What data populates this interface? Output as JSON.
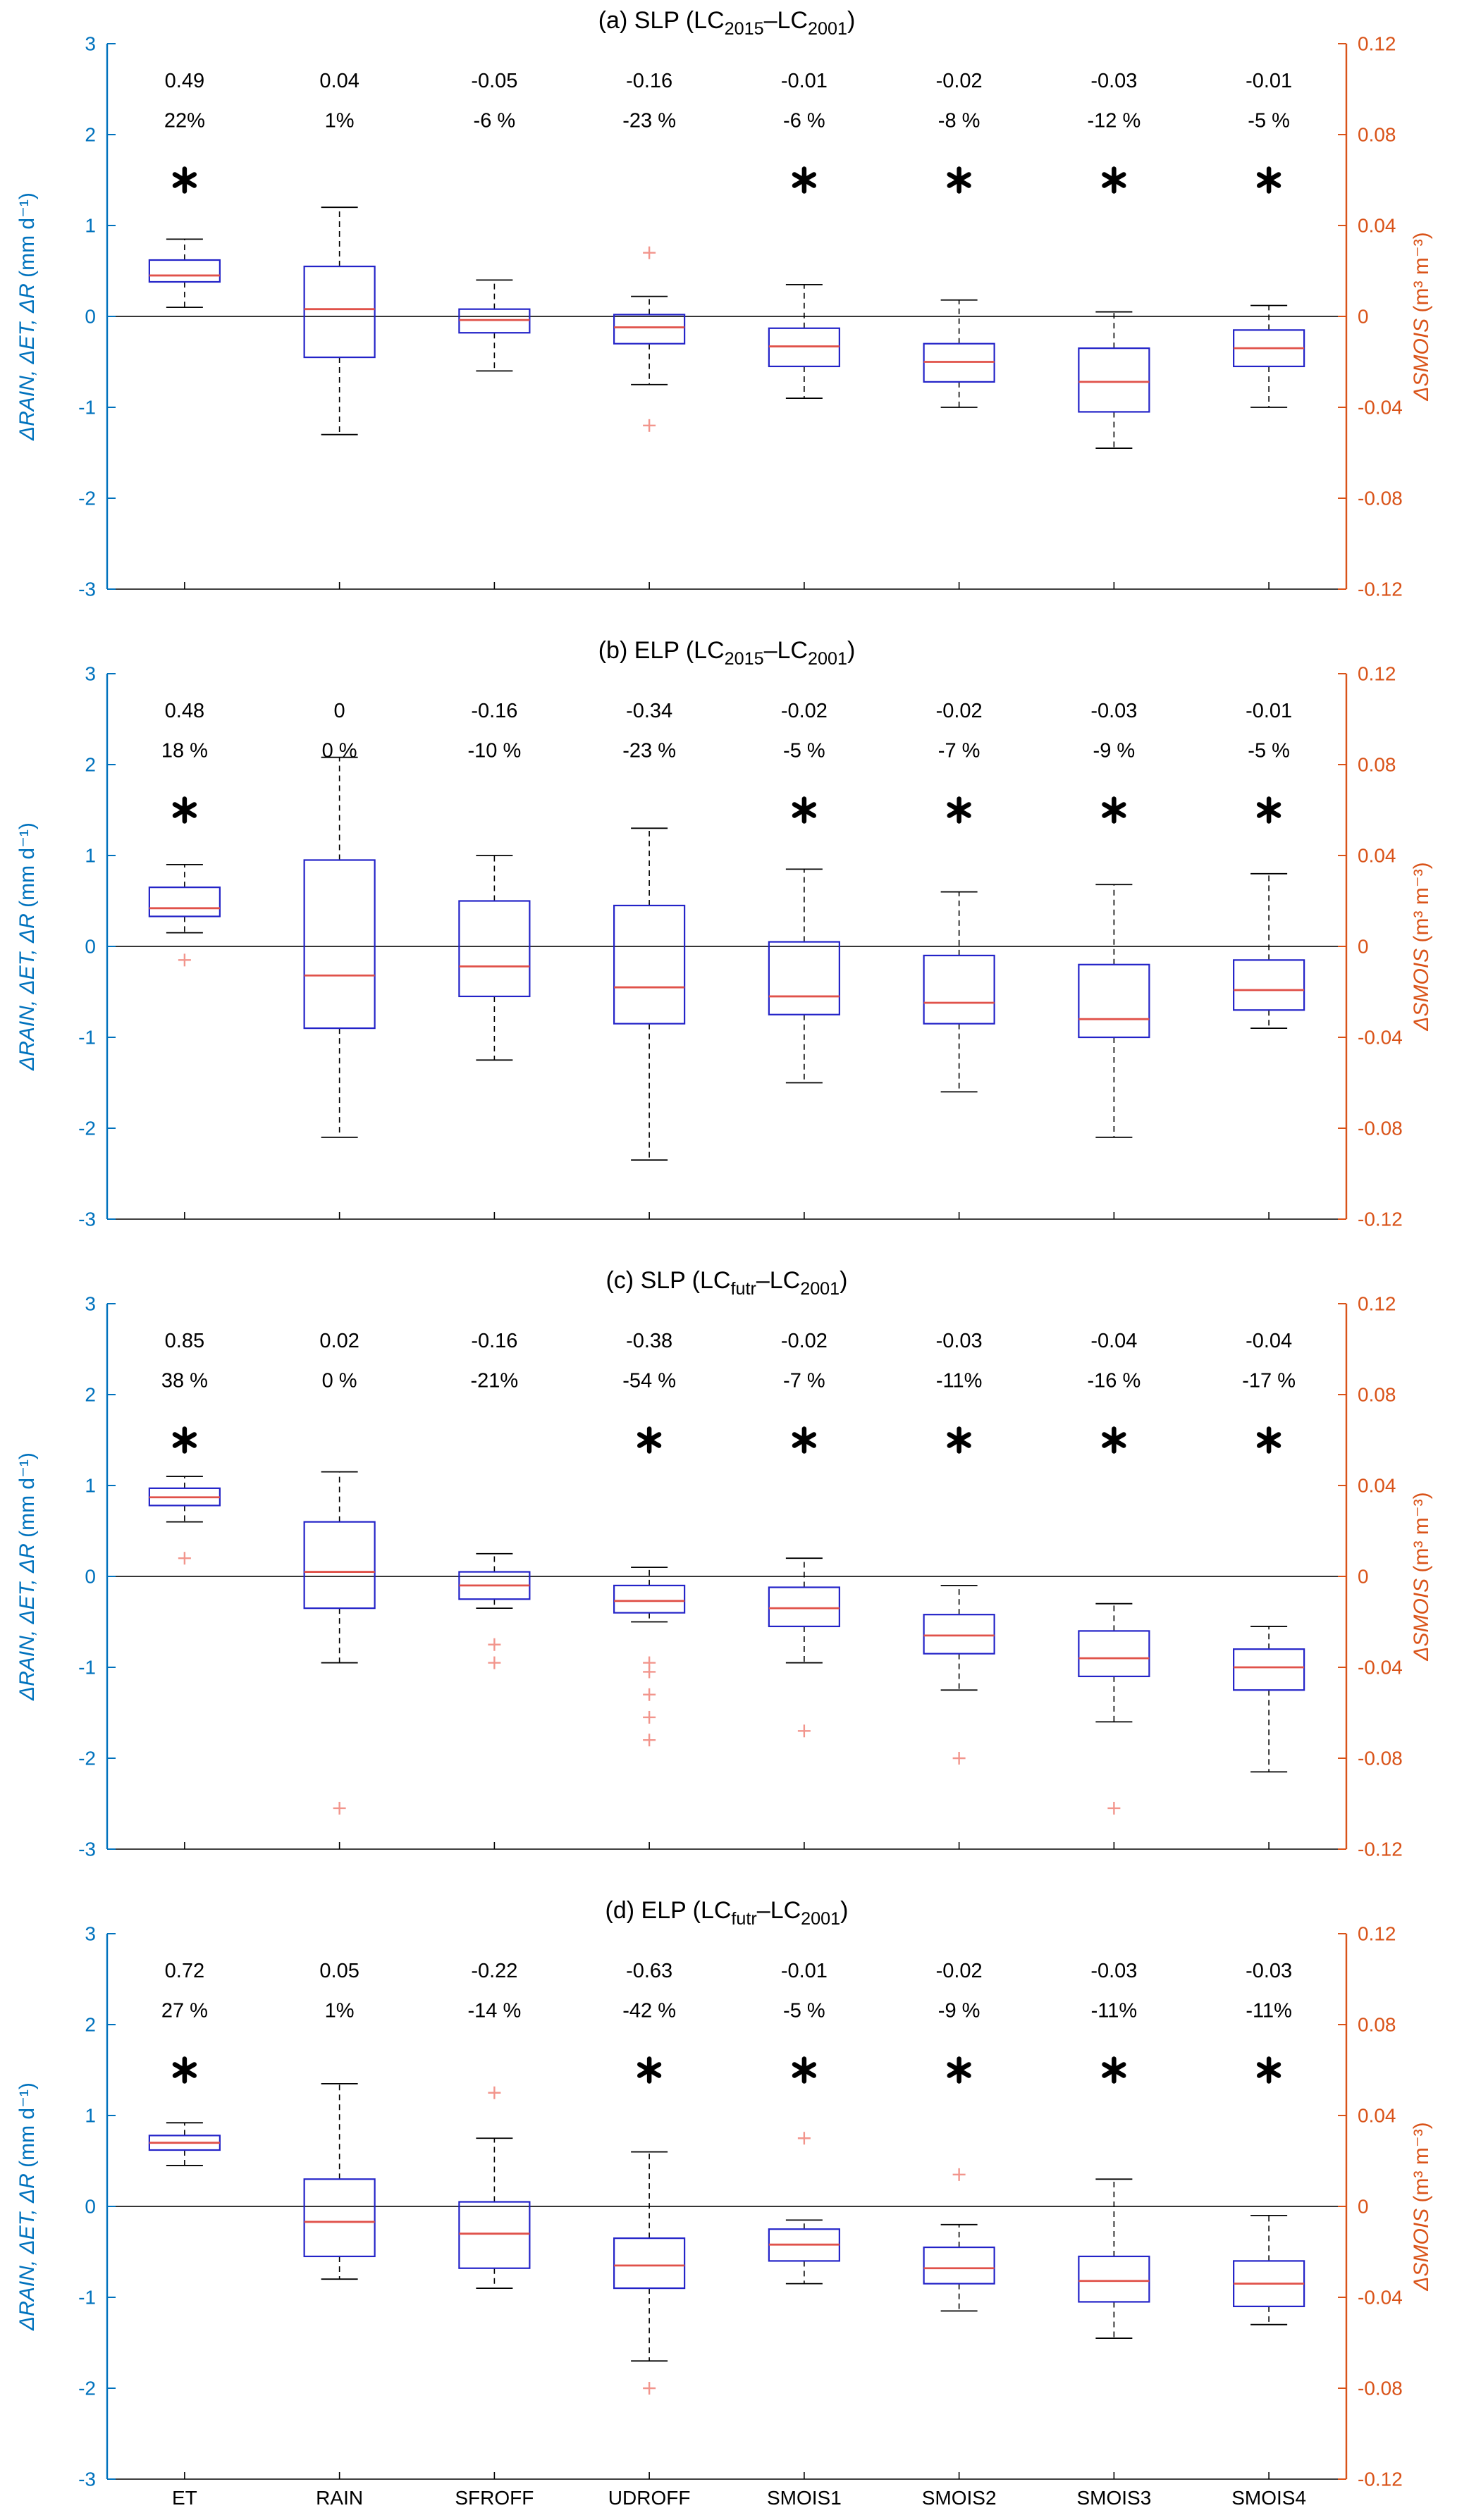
{
  "figure": {
    "units_left": "mm d⁻¹",
    "units_right": "m³ m⁻³",
    "left_axis_label": [
      {
        "text": "ΔRAIN, ΔET, ΔR",
        "italic": true
      },
      {
        "text": " (mm d⁻¹)",
        "italic": false
      }
    ],
    "right_axis_label": [
      {
        "text": "ΔSMOIS",
        "italic": true
      },
      {
        "text": " (m³ m⁻³)",
        "italic": false
      }
    ],
    "left_ticks": [
      {
        "v": 3,
        "label": "3"
      },
      {
        "v": 2,
        "label": "2"
      },
      {
        "v": 1,
        "label": "1"
      },
      {
        "v": 0,
        "label": "0"
      },
      {
        "v": -1,
        "label": "-1"
      },
      {
        "v": -2,
        "label": "-2"
      },
      {
        "v": -3,
        "label": "-3"
      }
    ],
    "right_ticks": [
      {
        "v": 0.12,
        "label": "0.12"
      },
      {
        "v": 0.08,
        "label": "0.08"
      },
      {
        "v": 0.04,
        "label": "0.04"
      },
      {
        "v": 0,
        "label": "0"
      },
      {
        "v": -0.04,
        "label": "-0.04"
      },
      {
        "v": -0.08,
        "label": "-0.08"
      },
      {
        "v": -0.12,
        "label": "-0.12"
      }
    ],
    "colors": {
      "left_axis": "#0072BD",
      "right_axis": "#D95319",
      "box": "#2323C8",
      "median": "#E0524A",
      "outlier": "#F2958C",
      "whisker": "#000000",
      "zero_line": "#1a1a1a",
      "text": "#000000"
    },
    "categories": [
      "ET",
      "RAIN",
      "SFROFF",
      "UDROFF",
      "SMOIS1",
      "SMOIS2",
      "SMOIS3",
      "SMOIS4"
    ],
    "category_axis": [
      "left",
      "left",
      "left",
      "left",
      "right",
      "right",
      "right",
      "right"
    ]
  },
  "chart_data": [
    {
      "type": "box",
      "panel": "a",
      "title": [
        {
          "text": "(a) SLP (LC"
        },
        {
          "text": "2015",
          "sub": true
        },
        {
          "text": "–LC"
        },
        {
          "text": "2001",
          "sub": true
        },
        {
          "text": ")"
        }
      ],
      "categories": [
        "ET",
        "RAIN",
        "SFROFF",
        "UDROFF",
        "SMOIS1",
        "SMOIS2",
        "SMOIS3",
        "SMOIS4"
      ],
      "ylim_left": [
        -3,
        3
      ],
      "ylim_right": [
        -0.12,
        0.12
      ],
      "annotations": [
        {
          "value": "0.49",
          "pct": "22%",
          "sig": true
        },
        {
          "value": "0.04",
          "pct": "1%",
          "sig": false
        },
        {
          "value": "-0.05",
          "pct": "-6 %",
          "sig": false
        },
        {
          "value": "-0.16",
          "pct": "-23 %",
          "sig": false
        },
        {
          "value": "-0.01",
          "pct": "-6 %",
          "sig": true
        },
        {
          "value": "-0.02",
          "pct": "-8 %",
          "sig": true
        },
        {
          "value": "-0.03",
          "pct": "-12 %",
          "sig": true
        },
        {
          "value": "-0.01",
          "pct": "-5 %",
          "sig": true
        }
      ],
      "boxes": [
        {
          "lo": 0.1,
          "q1": 0.38,
          "med": 0.45,
          "q3": 0.62,
          "hi": 0.85,
          "outliers": []
        },
        {
          "lo": -1.3,
          "q1": -0.45,
          "med": 0.08,
          "q3": 0.55,
          "hi": 1.2,
          "outliers": []
        },
        {
          "lo": -0.6,
          "q1": -0.18,
          "med": -0.04,
          "q3": 0.08,
          "hi": 0.4,
          "outliers": []
        },
        {
          "lo": -0.75,
          "q1": -0.3,
          "med": -0.12,
          "q3": 0.02,
          "hi": 0.22,
          "outliers": [
            0.7,
            -1.2
          ]
        },
        {
          "lo": -0.9,
          "q1": -0.55,
          "med": -0.33,
          "q3": -0.13,
          "hi": 0.35,
          "outliers": []
        },
        {
          "lo": -1.0,
          "q1": -0.72,
          "med": -0.5,
          "q3": -0.3,
          "hi": 0.18,
          "outliers": []
        },
        {
          "lo": -1.45,
          "q1": -1.05,
          "med": -0.72,
          "q3": -0.35,
          "hi": 0.05,
          "outliers": []
        },
        {
          "lo": -1.0,
          "q1": -0.55,
          "med": -0.35,
          "q3": -0.15,
          "hi": 0.12,
          "outliers": []
        }
      ],
      "show_x_labels": false
    },
    {
      "type": "box",
      "panel": "b",
      "title": [
        {
          "text": "(b) ELP (LC"
        },
        {
          "text": "2015",
          "sub": true
        },
        {
          "text": "–LC"
        },
        {
          "text": "2001",
          "sub": true
        },
        {
          "text": ")"
        }
      ],
      "categories": [
        "ET",
        "RAIN",
        "SFROFF",
        "UDROFF",
        "SMOIS1",
        "SMOIS2",
        "SMOIS3",
        "SMOIS4"
      ],
      "ylim_left": [
        -3,
        3
      ],
      "ylim_right": [
        -0.12,
        0.12
      ],
      "annotations": [
        {
          "value": "0.48",
          "pct": "18 %",
          "sig": true
        },
        {
          "value": "0",
          "pct": "0 %",
          "sig": false
        },
        {
          "value": "-0.16",
          "pct": "-10 %",
          "sig": false
        },
        {
          "value": "-0.34",
          "pct": "-23 %",
          "sig": false
        },
        {
          "value": "-0.02",
          "pct": "-5 %",
          "sig": true
        },
        {
          "value": "-0.02",
          "pct": "-7 %",
          "sig": true
        },
        {
          "value": "-0.03",
          "pct": "-9 %",
          "sig": true
        },
        {
          "value": "-0.01",
          "pct": "-5 %",
          "sig": true
        }
      ],
      "boxes": [
        {
          "lo": 0.15,
          "q1": 0.33,
          "med": 0.42,
          "q3": 0.65,
          "hi": 0.9,
          "outliers": [
            -0.15
          ]
        },
        {
          "lo": -2.1,
          "q1": -0.9,
          "med": -0.32,
          "q3": 0.95,
          "hi": 2.08,
          "outliers": []
        },
        {
          "lo": -1.25,
          "q1": -0.55,
          "med": -0.22,
          "q3": 0.5,
          "hi": 1.0,
          "outliers": []
        },
        {
          "lo": -2.35,
          "q1": -0.85,
          "med": -0.45,
          "q3": 0.45,
          "hi": 1.3,
          "outliers": []
        },
        {
          "lo": -1.5,
          "q1": -0.75,
          "med": -0.55,
          "q3": 0.05,
          "hi": 0.85,
          "outliers": []
        },
        {
          "lo": -1.6,
          "q1": -0.85,
          "med": -0.62,
          "q3": -0.1,
          "hi": 0.6,
          "outliers": []
        },
        {
          "lo": -2.1,
          "q1": -1.0,
          "med": -0.8,
          "q3": -0.2,
          "hi": 0.68,
          "outliers": []
        },
        {
          "lo": -0.9,
          "q1": -0.7,
          "med": -0.48,
          "q3": -0.15,
          "hi": 0.8,
          "outliers": []
        }
      ],
      "show_x_labels": false
    },
    {
      "type": "box",
      "panel": "c",
      "title": [
        {
          "text": "(c) SLP (LC"
        },
        {
          "text": "futr",
          "sub": true
        },
        {
          "text": "–LC"
        },
        {
          "text": "2001",
          "sub": true
        },
        {
          "text": ")"
        }
      ],
      "categories": [
        "ET",
        "RAIN",
        "SFROFF",
        "UDROFF",
        "SMOIS1",
        "SMOIS2",
        "SMOIS3",
        "SMOIS4"
      ],
      "ylim_left": [
        -3,
        3
      ],
      "ylim_right": [
        -0.12,
        0.12
      ],
      "annotations": [
        {
          "value": "0.85",
          "pct": "38 %",
          "sig": true
        },
        {
          "value": "0.02",
          "pct": "0 %",
          "sig": false
        },
        {
          "value": "-0.16",
          "pct": "-21%",
          "sig": false
        },
        {
          "value": "-0.38",
          "pct": "-54 %",
          "sig": true
        },
        {
          "value": "-0.02",
          "pct": "-7 %",
          "sig": true
        },
        {
          "value": "-0.03",
          "pct": "-11%",
          "sig": true
        },
        {
          "value": "-0.04",
          "pct": "-16 %",
          "sig": true
        },
        {
          "value": "-0.04",
          "pct": "-17 %",
          "sig": true
        }
      ],
      "boxes": [
        {
          "lo": 0.6,
          "q1": 0.78,
          "med": 0.87,
          "q3": 0.97,
          "hi": 1.1,
          "outliers": [
            0.2
          ]
        },
        {
          "lo": -0.95,
          "q1": -0.35,
          "med": 0.05,
          "q3": 0.6,
          "hi": 1.15,
          "outliers": [
            -2.55
          ]
        },
        {
          "lo": -0.35,
          "q1": -0.25,
          "med": -0.1,
          "q3": 0.05,
          "hi": 0.25,
          "outliers": [
            -0.75,
            -0.95
          ]
        },
        {
          "lo": -0.5,
          "q1": -0.4,
          "med": -0.27,
          "q3": -0.1,
          "hi": 0.1,
          "outliers": [
            -0.95,
            -1.05,
            -1.3,
            -1.55,
            -1.8
          ]
        },
        {
          "lo": -0.95,
          "q1": -0.55,
          "med": -0.35,
          "q3": -0.12,
          "hi": 0.2,
          "outliers": [
            -1.7
          ]
        },
        {
          "lo": -1.25,
          "q1": -0.85,
          "med": -0.65,
          "q3": -0.42,
          "hi": -0.1,
          "outliers": [
            -2.0
          ]
        },
        {
          "lo": -1.6,
          "q1": -1.1,
          "med": -0.9,
          "q3": -0.6,
          "hi": -0.3,
          "outliers": [
            -2.55
          ]
        },
        {
          "lo": -2.15,
          "q1": -1.25,
          "med": -1.0,
          "q3": -0.8,
          "hi": -0.55,
          "outliers": []
        }
      ],
      "show_x_labels": false
    },
    {
      "type": "box",
      "panel": "d",
      "title": [
        {
          "text": "(d) ELP (LC"
        },
        {
          "text": "futr",
          "sub": true
        },
        {
          "text": "–LC"
        },
        {
          "text": "2001",
          "sub": true
        },
        {
          "text": ")"
        }
      ],
      "categories": [
        "ET",
        "RAIN",
        "SFROFF",
        "UDROFF",
        "SMOIS1",
        "SMOIS2",
        "SMOIS3",
        "SMOIS4"
      ],
      "ylim_left": [
        -3,
        3
      ],
      "ylim_right": [
        -0.12,
        0.12
      ],
      "annotations": [
        {
          "value": "0.72",
          "pct": "27 %",
          "sig": true
        },
        {
          "value": "0.05",
          "pct": "1%",
          "sig": false
        },
        {
          "value": "-0.22",
          "pct": "-14 %",
          "sig": false
        },
        {
          "value": "-0.63",
          "pct": "-42 %",
          "sig": true
        },
        {
          "value": "-0.01",
          "pct": "-5 %",
          "sig": true
        },
        {
          "value": "-0.02",
          "pct": "-9 %",
          "sig": true
        },
        {
          "value": "-0.03",
          "pct": "-11%",
          "sig": true
        },
        {
          "value": "-0.03",
          "pct": "-11%",
          "sig": true
        }
      ],
      "boxes": [
        {
          "lo": 0.45,
          "q1": 0.62,
          "med": 0.7,
          "q3": 0.78,
          "hi": 0.92,
          "outliers": []
        },
        {
          "lo": -0.8,
          "q1": -0.55,
          "med": -0.17,
          "q3": 0.3,
          "hi": 1.35,
          "outliers": []
        },
        {
          "lo": -0.9,
          "q1": -0.68,
          "med": -0.3,
          "q3": 0.05,
          "hi": 0.75,
          "outliers": [
            1.25
          ]
        },
        {
          "lo": -1.7,
          "q1": -0.9,
          "med": -0.65,
          "q3": -0.35,
          "hi": 0.6,
          "outliers": [
            -2.0
          ]
        },
        {
          "lo": -0.85,
          "q1": -0.6,
          "med": -0.42,
          "q3": -0.25,
          "hi": -0.15,
          "outliers": [
            0.75
          ]
        },
        {
          "lo": -1.15,
          "q1": -0.85,
          "med": -0.68,
          "q3": -0.45,
          "hi": -0.2,
          "outliers": [
            0.35
          ]
        },
        {
          "lo": -1.45,
          "q1": -1.05,
          "med": -0.82,
          "q3": -0.55,
          "hi": 0.3,
          "outliers": []
        },
        {
          "lo": -1.3,
          "q1": -1.1,
          "med": -0.85,
          "q3": -0.6,
          "hi": -0.1,
          "outliers": []
        }
      ],
      "show_x_labels": true
    }
  ]
}
